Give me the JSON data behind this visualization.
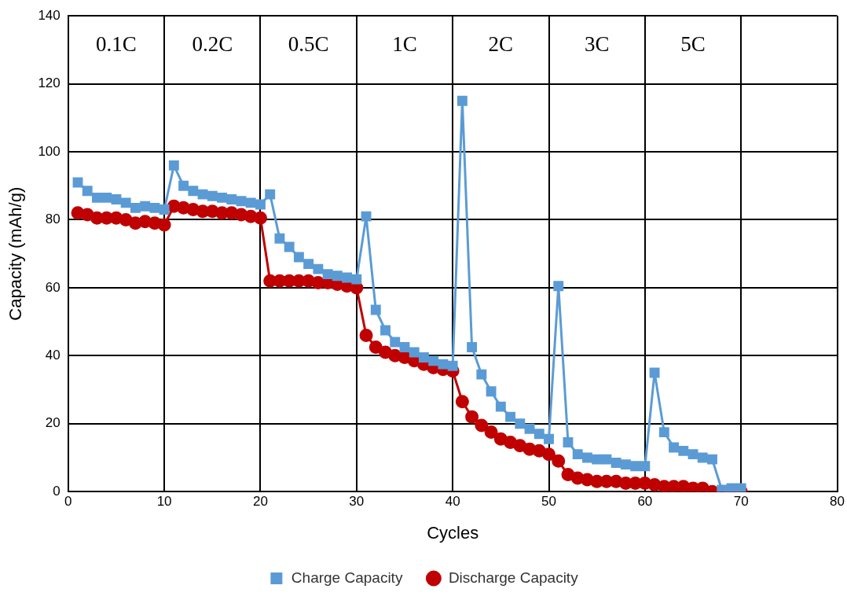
{
  "chart_data": {
    "type": "line",
    "xlabel": "Cycles",
    "ylabel": "Capacity (mAh/g)",
    "x": [
      1,
      2,
      3,
      4,
      5,
      6,
      7,
      8,
      9,
      10,
      11,
      12,
      13,
      14,
      15,
      16,
      17,
      18,
      19,
      20,
      21,
      22,
      23,
      24,
      25,
      26,
      27,
      28,
      29,
      30,
      31,
      32,
      33,
      34,
      35,
      36,
      37,
      38,
      39,
      40,
      41,
      42,
      43,
      44,
      45,
      46,
      47,
      48,
      49,
      50,
      51,
      52,
      53,
      54,
      55,
      56,
      57,
      58,
      59,
      60,
      61,
      62,
      63,
      64,
      65,
      66,
      67,
      68,
      69,
      70
    ],
    "series": [
      {
        "name": "Charge Capacity",
        "color": "#5b9bd5",
        "marker": "square",
        "values": [
          91,
          88.5,
          86.5,
          86.5,
          86,
          85,
          83.5,
          84,
          83.5,
          83,
          96,
          90,
          88.5,
          87.5,
          87,
          86.5,
          86,
          85.5,
          85,
          84.5,
          87.5,
          74.5,
          72,
          69,
          67,
          65.5,
          64,
          63.5,
          63,
          62.5,
          81,
          53.5,
          47.5,
          44,
          42.5,
          41,
          39.5,
          38.5,
          37.5,
          37,
          115,
          42.5,
          34.5,
          29.5,
          25,
          22,
          20,
          18.5,
          17,
          15.5,
          60.5,
          14.5,
          11,
          10,
          9.5,
          9.5,
          8.5,
          8,
          7.5,
          7.5,
          35,
          17.5,
          13,
          12,
          11,
          10,
          9.5,
          0.5,
          1,
          1
        ]
      },
      {
        "name": "Discharge Capacity",
        "color": "#c00000",
        "marker": "circle",
        "values": [
          82,
          81.5,
          80.5,
          80.5,
          80.5,
          80,
          79,
          79.5,
          79,
          78.5,
          84,
          83.5,
          83,
          82.5,
          82.5,
          82,
          82,
          81.5,
          81,
          80.5,
          62,
          62,
          62,
          62,
          62,
          61.5,
          61.5,
          61,
          60.5,
          60,
          46,
          42.5,
          41,
          40,
          39.5,
          38.5,
          37.5,
          36.5,
          36,
          35.5,
          26.5,
          22,
          19.5,
          17.5,
          15.5,
          14.5,
          13.5,
          12.5,
          12,
          11,
          9,
          5,
          4,
          3.5,
          3,
          3,
          3,
          2.5,
          2.5,
          2.5,
          2,
          1.5,
          1.5,
          1.5,
          1,
          1,
          0,
          0,
          0,
          0
        ]
      }
    ],
    "xlim": [
      0,
      80
    ],
    "xticks": [
      0,
      10,
      20,
      30,
      40,
      50,
      60,
      70,
      80
    ],
    "ylim": [
      0,
      140
    ],
    "yticks": [
      0,
      20,
      40,
      60,
      80,
      100,
      120,
      140
    ],
    "annotations": [
      "0.1C",
      "0.2C",
      "0.5C",
      "1C",
      "2C",
      "3C",
      "5C"
    ],
    "grid": true,
    "legend": "bottom",
    "line_style": "solid"
  }
}
